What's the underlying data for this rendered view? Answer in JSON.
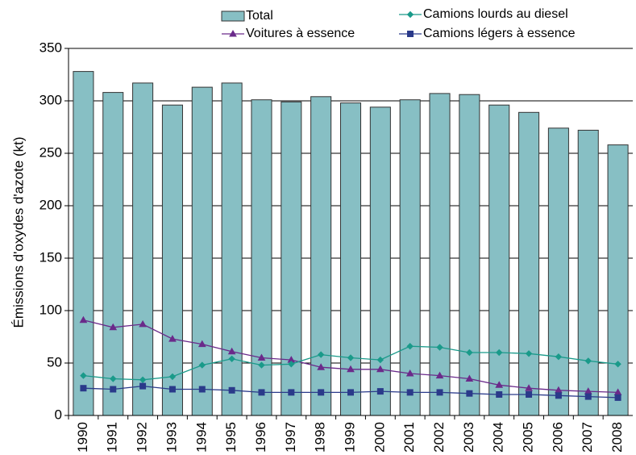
{
  "chart_data": {
    "type": "bar",
    "y_label": "Émissions d'oxydes d'azote (kt)",
    "categories": [
      "1990",
      "1991",
      "1992",
      "1993",
      "1994",
      "1995",
      "1996",
      "1997",
      "1998",
      "1999",
      "2000",
      "2001",
      "2002",
      "2003",
      "2004",
      "2005",
      "2006",
      "2007",
      "2008"
    ],
    "series": [
      {
        "name": "Total",
        "type": "bar",
        "color": "#87bfc4",
        "values": [
          328,
          308,
          317,
          296,
          313,
          317,
          301,
          299,
          304,
          298,
          294,
          301,
          307,
          306,
          296,
          289,
          274,
          272,
          258
        ]
      },
      {
        "name": "Voitures à essence",
        "type": "line",
        "marker": "triangle",
        "color": "#6a2a8a",
        "values": [
          91,
          84,
          87,
          73,
          68,
          61,
          55,
          53,
          46,
          44,
          44,
          40,
          38,
          35,
          29,
          26,
          24,
          23,
          22
        ]
      },
      {
        "name": "Camions lourds au diesel",
        "type": "line",
        "marker": "diamond",
        "color": "#1a9a8a",
        "values": [
          38,
          35,
          34,
          37,
          48,
          54,
          48,
          49,
          58,
          55,
          53,
          66,
          65,
          60,
          60,
          59,
          56,
          52,
          49
        ]
      },
      {
        "name": "Camions légers à essence",
        "type": "line",
        "marker": "square",
        "color": "#2a3a8a",
        "values": [
          26,
          25,
          28,
          25,
          25,
          24,
          22,
          22,
          22,
          22,
          23,
          22,
          22,
          21,
          20,
          20,
          19,
          18,
          17
        ]
      }
    ],
    "ylim": [
      0,
      350
    ],
    "yticks": [
      0,
      50,
      100,
      150,
      200,
      250,
      300,
      350
    ],
    "grid": true
  }
}
